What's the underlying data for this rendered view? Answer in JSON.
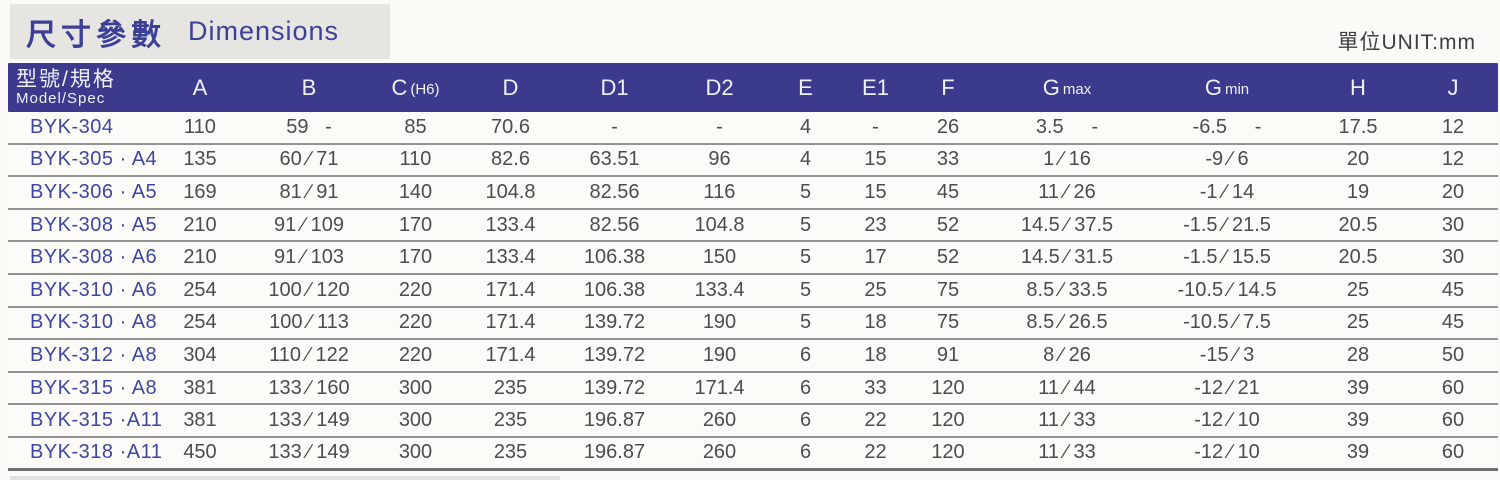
{
  "page": {
    "title_zh": "尺寸參數",
    "title_en": "Dimensions",
    "unit_label": "單位UNIT:mm"
  },
  "colors": {
    "header_bg": "#3c3a8c",
    "title_text": "#3c3f96",
    "model_text": "#3d47a1",
    "value_text": "#4c4c4c",
    "title_block_bg": "#e6e5e2",
    "row_separator": "#929292"
  },
  "table": {
    "model_header": {
      "zh": "型號/規格",
      "en": "Model/Spec"
    },
    "columns": [
      {
        "id": "A",
        "label": "A"
      },
      {
        "id": "B",
        "label": "B"
      },
      {
        "id": "C",
        "label": "C",
        "sub": "(H6)"
      },
      {
        "id": "D",
        "label": "D"
      },
      {
        "id": "D1",
        "label": "D1"
      },
      {
        "id": "D2",
        "label": "D2"
      },
      {
        "id": "E",
        "label": "E"
      },
      {
        "id": "E1",
        "label": "E1"
      },
      {
        "id": "F",
        "label": "F"
      },
      {
        "id": "Gmax",
        "label": "G",
        "sub": "max"
      },
      {
        "id": "Gmin",
        "label": "G",
        "sub": "min"
      },
      {
        "id": "H",
        "label": "H"
      },
      {
        "id": "J",
        "label": "J"
      }
    ],
    "rows": [
      {
        "model": "BYK-304",
        "values": [
          "110",
          "59   -",
          "85",
          "70.6",
          "-",
          "-",
          "4",
          "-",
          "26",
          "3.5     -",
          "-6.5     -",
          "17.5",
          "12"
        ]
      },
      {
        "model": "BYK-305 · A4",
        "values": [
          "135",
          "60 ∕ 71",
          "110",
          "82.6",
          "63.51",
          "96",
          "4",
          "15",
          "33",
          "1 ∕ 16",
          "-9 ∕ 6",
          "20",
          "12"
        ]
      },
      {
        "model": "BYK-306 · A5",
        "values": [
          "169",
          "81 ∕ 91",
          "140",
          "104.8",
          "82.56",
          "116",
          "5",
          "15",
          "45",
          "11 ∕ 26",
          "-1 ∕ 14",
          "19",
          "20"
        ]
      },
      {
        "model": "BYK-308 · A5",
        "values": [
          "210",
          "91 ∕ 109",
          "170",
          "133.4",
          "82.56",
          "104.8",
          "5",
          "23",
          "52",
          "14.5 ∕ 37.5",
          "-1.5 ∕ 21.5",
          "20.5",
          "30"
        ]
      },
      {
        "model": "BYK-308 · A6",
        "values": [
          "210",
          "91 ∕ 103",
          "170",
          "133.4",
          "106.38",
          "150",
          "5",
          "17",
          "52",
          "14.5 ∕ 31.5",
          "-1.5 ∕ 15.5",
          "20.5",
          "30"
        ]
      },
      {
        "model": "BYK-310 · A6",
        "values": [
          "254",
          "100 ∕ 120",
          "220",
          "171.4",
          "106.38",
          "133.4",
          "5",
          "25",
          "75",
          "8.5 ∕ 33.5",
          "-10.5 ∕ 14.5",
          "25",
          "45"
        ]
      },
      {
        "model": "BYK-310 · A8",
        "values": [
          "254",
          "100 ∕ 113",
          "220",
          "171.4",
          "139.72",
          "190",
          "5",
          "18",
          "75",
          "8.5 ∕ 26.5",
          "-10.5 ∕ 7.5",
          "25",
          "45"
        ]
      },
      {
        "model": "BYK-312 · A8",
        "values": [
          "304",
          "110 ∕ 122",
          "220",
          "171.4",
          "139.72",
          "190",
          "6",
          "18",
          "91",
          "8 ∕ 26",
          "-15 ∕ 3",
          "28",
          "50"
        ]
      },
      {
        "model": "BYK-315 · A8",
        "values": [
          "381",
          "133 ∕ 160",
          "300",
          "235",
          "139.72",
          "171.4",
          "6",
          "33",
          "120",
          "11 ∕ 44",
          "-12 ∕ 21",
          "39",
          "60"
        ]
      },
      {
        "model": "BYK-315 ·A11",
        "values": [
          "381",
          "133 ∕ 149",
          "300",
          "235",
          "196.87",
          "260",
          "6",
          "22",
          "120",
          "11 ∕ 33",
          "-12 ∕ 10",
          "39",
          "60"
        ]
      },
      {
        "model": "BYK-318 ·A11",
        "values": [
          "450",
          "133 ∕ 149",
          "300",
          "235",
          "196.87",
          "260",
          "6",
          "22",
          "120",
          "11 ∕ 33",
          "-12 ∕ 10",
          "39",
          "60"
        ]
      }
    ]
  }
}
